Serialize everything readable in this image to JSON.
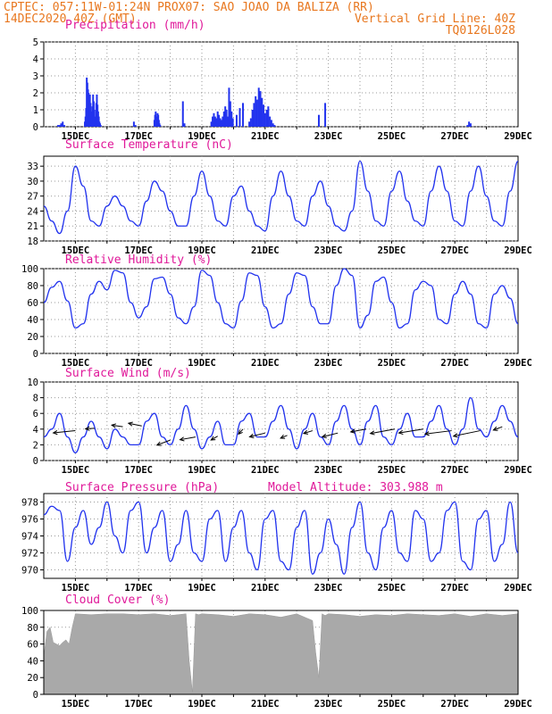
{
  "header": {
    "line1": "CPTEC:  057:11W-01:24N  PROX07: SAO JOAO DA BALIZA (RR)",
    "line2_left": "14DEC2020 40Z (GMT)",
    "line2_right": "Vertical Grid Line: 40Z",
    "line3_right": "TQ0126L028"
  },
  "colors": {
    "header": "#e8771f",
    "title": "#e0199a",
    "series": "#2233ee",
    "cloud": "#a9a9a9"
  },
  "x_labels": [
    "15DEC",
    "17DEC",
    "19DEC",
    "21DEC",
    "23DEC",
    "25DEC",
    "27DEC",
    "29DEC"
  ],
  "chart_data": [
    {
      "id": "precip",
      "type": "bar",
      "title": "Precipitation (mm/h)",
      "extra": "",
      "ylim": [
        0,
        5
      ],
      "yticks": [
        0,
        1,
        2,
        3,
        4,
        5
      ],
      "x": [
        0.45,
        0.5,
        0.55,
        0.6,
        0.65,
        1.3,
        1.32,
        1.34,
        1.36,
        1.38,
        1.4,
        1.42,
        1.44,
        1.46,
        1.48,
        1.5,
        1.52,
        1.54,
        1.56,
        1.58,
        1.6,
        1.62,
        1.64,
        1.66,
        1.68,
        1.7,
        1.72,
        1.74,
        1.76,
        1.78,
        1.8,
        2.85,
        2.9,
        3.5,
        3.52,
        3.54,
        3.56,
        3.58,
        3.6,
        3.62,
        3.64,
        3.66,
        3.68,
        4.4,
        4.45,
        5.3,
        5.34,
        5.38,
        5.42,
        5.46,
        5.5,
        5.54,
        5.58,
        5.62,
        5.66,
        5.7,
        5.74,
        5.78,
        5.82,
        5.86,
        5.9,
        5.94,
        5.98,
        6.1,
        6.2,
        6.3,
        6.5,
        6.55,
        6.6,
        6.65,
        6.7,
        6.75,
        6.8,
        6.85,
        6.9,
        6.95,
        7.0,
        7.05,
        7.1,
        7.15,
        7.2,
        7.25,
        7.3,
        8.7,
        8.9,
        13.4,
        13.45,
        13.5
      ],
      "values": [
        0.1,
        0.1,
        0.2,
        0.3,
        0.1,
        0.3,
        0.6,
        1.1,
        2.9,
        2.6,
        2.2,
        2.0,
        1.8,
        1.9,
        1.4,
        0.9,
        0.6,
        1.2,
        1.9,
        1.5,
        1.0,
        0.5,
        0.6,
        1.4,
        1.9,
        1.3,
        0.9,
        0.6,
        0.3,
        0.2,
        0.1,
        0.3,
        0.1,
        0.4,
        0.7,
        0.9,
        0.6,
        0.5,
        0.8,
        0.7,
        0.4,
        0.2,
        0.1,
        1.5,
        0.2,
        0.3,
        0.6,
        0.8,
        0.6,
        0.5,
        0.9,
        0.7,
        0.5,
        0.4,
        0.6,
        0.9,
        1.2,
        1.0,
        0.6,
        2.3,
        1.5,
        0.9,
        0.5,
        0.7,
        1.1,
        1.4,
        0.3,
        0.5,
        1.0,
        1.4,
        1.8,
        1.6,
        2.3,
        2.1,
        1.7,
        1.3,
        0.8,
        1.0,
        1.2,
        0.6,
        0.4,
        0.2,
        0.1,
        0.7,
        1.4,
        0.1,
        0.3,
        0.2
      ]
    },
    {
      "id": "temp",
      "type": "line",
      "title": "Surface Temperature (nC)",
      "extra": "",
      "ylim": [
        18,
        35
      ],
      "yticks": [
        18,
        21,
        24,
        27,
        30,
        33
      ],
      "x": [
        0,
        0.25,
        0.5,
        0.75,
        1,
        1.25,
        1.5,
        1.75,
        2,
        2.25,
        2.5,
        2.75,
        3,
        3.25,
        3.5,
        3.75,
        4,
        4.25,
        4.5,
        4.75,
        5,
        5.25,
        5.5,
        5.75,
        6,
        6.25,
        6.5,
        6.75,
        7,
        7.25,
        7.5,
        7.75,
        8,
        8.25,
        8.5,
        8.75,
        9,
        9.25,
        9.5,
        9.75,
        10,
        10.25,
        10.5,
        10.75,
        11,
        11.25,
        11.5,
        11.75,
        12,
        12.25,
        12.5,
        12.75,
        13,
        13.25,
        13.5,
        13.75,
        14,
        14.25,
        14.5,
        14.75,
        15
      ],
      "values": [
        25,
        22,
        19.5,
        24,
        33,
        29,
        22,
        21,
        25,
        27,
        25,
        22,
        21,
        26,
        30,
        28,
        24,
        21,
        21,
        27,
        32,
        27,
        22,
        21,
        27,
        29,
        24,
        21,
        20,
        27,
        32,
        27,
        22,
        21,
        27,
        30,
        25,
        21,
        20,
        24,
        34,
        28,
        22,
        21,
        28,
        32,
        26,
        22,
        21,
        28,
        33,
        28,
        22,
        21,
        28,
        33,
        27,
        22,
        21,
        28,
        34
      ]
    },
    {
      "id": "rh",
      "type": "line",
      "title": "Relative Humidity (%)",
      "extra": "",
      "ylim": [
        0,
        100
      ],
      "yticks": [
        0,
        20,
        40,
        60,
        80,
        100
      ],
      "x": [
        0,
        0.25,
        0.5,
        0.75,
        1,
        1.25,
        1.5,
        1.75,
        2,
        2.25,
        2.5,
        2.75,
        3,
        3.25,
        3.5,
        3.75,
        4,
        4.25,
        4.5,
        4.75,
        5,
        5.25,
        5.5,
        5.75,
        6,
        6.25,
        6.5,
        6.75,
        7,
        7.25,
        7.5,
        7.75,
        8,
        8.25,
        8.5,
        8.75,
        9,
        9.25,
        9.5,
        9.75,
        10,
        10.25,
        10.5,
        10.75,
        11,
        11.25,
        11.5,
        11.75,
        12,
        12.25,
        12.5,
        12.75,
        13,
        13.25,
        13.5,
        13.75,
        14,
        14.25,
        14.5,
        14.75,
        15
      ],
      "values": [
        60,
        78,
        85,
        62,
        30,
        35,
        70,
        85,
        75,
        98,
        95,
        60,
        42,
        55,
        88,
        90,
        70,
        42,
        35,
        55,
        98,
        92,
        60,
        35,
        30,
        62,
        95,
        92,
        55,
        30,
        35,
        70,
        95,
        92,
        55,
        35,
        35,
        80,
        100,
        92,
        30,
        45,
        85,
        90,
        60,
        30,
        35,
        75,
        85,
        80,
        40,
        35,
        70,
        85,
        70,
        35,
        30,
        70,
        80,
        65,
        35
      ]
    },
    {
      "id": "wind",
      "type": "line",
      "title": "Surface Wind (m/s)",
      "extra": "",
      "ylim": [
        0,
        10
      ],
      "yticks": [
        0,
        2,
        4,
        6,
        8,
        10
      ],
      "x": [
        0,
        0.25,
        0.5,
        0.75,
        1,
        1.25,
        1.5,
        1.75,
        2,
        2.25,
        2.5,
        2.75,
        3,
        3.25,
        3.5,
        3.75,
        4,
        4.25,
        4.5,
        4.75,
        5,
        5.25,
        5.5,
        5.75,
        6,
        6.25,
        6.5,
        6.75,
        7,
        7.25,
        7.5,
        7.75,
        8,
        8.25,
        8.5,
        8.75,
        9,
        9.25,
        9.5,
        9.75,
        10,
        10.25,
        10.5,
        10.75,
        11,
        11.25,
        11.5,
        11.75,
        12,
        12.25,
        12.5,
        12.75,
        13,
        13.25,
        13.5,
        13.75,
        14,
        14.25,
        14.5,
        14.75,
        15
      ],
      "values": [
        3,
        4,
        6,
        3,
        1,
        3,
        5,
        3,
        1.5,
        4,
        3,
        2,
        2,
        5,
        6,
        3,
        2,
        4,
        7,
        4,
        1.5,
        3,
        5,
        2,
        2,
        5,
        6,
        3,
        3,
        5,
        7,
        4,
        1.5,
        4,
        6,
        3,
        2,
        5,
        7,
        4,
        2,
        5,
        7,
        3,
        2,
        4,
        6,
        3,
        3,
        5,
        7,
        4,
        2,
        4,
        8,
        4,
        3,
        5,
        7,
        5,
        3
      ],
      "arrows": [
        {
          "x": 1.0,
          "y": 3.8,
          "dx": -1.0,
          "dy": -0.4
        },
        {
          "x": 1.6,
          "y": 4.1,
          "dx": -0.4,
          "dy": -0.1
        },
        {
          "x": 2.5,
          "y": 4.3,
          "dx": -0.5,
          "dy": 0.3
        },
        {
          "x": 3.1,
          "y": 4.4,
          "dx": -0.6,
          "dy": 0.5
        },
        {
          "x": 4.0,
          "y": 2.6,
          "dx": -0.6,
          "dy": -0.9
        },
        {
          "x": 4.8,
          "y": 3.0,
          "dx": -0.7,
          "dy": -0.5
        },
        {
          "x": 5.5,
          "y": 3.1,
          "dx": -0.3,
          "dy": -0.7
        },
        {
          "x": 6.3,
          "y": 4.0,
          "dx": -0.2,
          "dy": -0.9
        },
        {
          "x": 7.0,
          "y": 3.5,
          "dx": -0.7,
          "dy": -0.7
        },
        {
          "x": 7.7,
          "y": 3.2,
          "dx": -0.3,
          "dy": -0.5
        },
        {
          "x": 8.5,
          "y": 3.8,
          "dx": -0.4,
          "dy": -0.5
        },
        {
          "x": 9.3,
          "y": 3.5,
          "dx": -0.7,
          "dy": -0.7
        },
        {
          "x": 10.2,
          "y": 4.0,
          "dx": -0.7,
          "dy": -0.5
        },
        {
          "x": 11.1,
          "y": 4.0,
          "dx": -1.1,
          "dy": -0.8
        },
        {
          "x": 12.0,
          "y": 4.0,
          "dx": -1.1,
          "dy": -0.7
        },
        {
          "x": 12.9,
          "y": 3.8,
          "dx": -1.2,
          "dy": -0.6
        },
        {
          "x": 13.8,
          "y": 3.8,
          "dx": -1.2,
          "dy": -1.0
        },
        {
          "x": 14.5,
          "y": 4.3,
          "dx": -0.4,
          "dy": -0.6
        }
      ]
    },
    {
      "id": "pres",
      "type": "line",
      "title": "Surface Pressure (hPa)",
      "extra": "Model Altitude: 303.988 m",
      "ylim": [
        969,
        979
      ],
      "yticks": [
        970,
        972,
        974,
        976,
        978
      ],
      "x": [
        0,
        0.25,
        0.5,
        0.75,
        1,
        1.25,
        1.5,
        1.75,
        2,
        2.25,
        2.5,
        2.75,
        3,
        3.25,
        3.5,
        3.75,
        4,
        4.25,
        4.5,
        4.75,
        5,
        5.25,
        5.5,
        5.75,
        6,
        6.25,
        6.5,
        6.75,
        7,
        7.25,
        7.5,
        7.75,
        8,
        8.25,
        8.5,
        8.75,
        9,
        9.25,
        9.5,
        9.75,
        10,
        10.25,
        10.5,
        10.75,
        11,
        11.25,
        11.5,
        11.75,
        12,
        12.25,
        12.5,
        12.75,
        13,
        13.25,
        13.5,
        13.75,
        14,
        14.25,
        14.5,
        14.75,
        15
      ],
      "values": [
        976.5,
        977.5,
        977,
        971,
        975,
        977,
        973,
        975,
        978,
        974,
        972,
        977,
        978,
        972,
        975,
        977,
        971,
        973,
        977,
        972,
        971,
        976,
        977,
        971,
        975,
        977,
        972,
        970,
        976,
        977,
        971,
        970,
        975,
        977,
        969.5,
        972,
        976,
        973,
        969.5,
        975,
        978,
        972,
        970,
        975,
        977,
        972,
        971,
        977,
        976,
        971,
        972,
        977,
        978,
        971,
        970,
        976,
        977,
        971,
        973,
        978,
        972
      ]
    },
    {
      "id": "cloud",
      "type": "area",
      "title": "Cloud Cover (%)",
      "extra": "",
      "ylim": [
        0,
        100
      ],
      "yticks": [
        0,
        20,
        40,
        60,
        80,
        100
      ],
      "x": [
        0,
        0.1,
        0.2,
        0.3,
        0.4,
        0.5,
        0.6,
        0.7,
        0.8,
        0.9,
        1.0,
        1.5,
        2.0,
        2.5,
        3.0,
        3.5,
        4.0,
        4.5,
        4.6,
        4.7,
        4.8,
        4.9,
        5.0,
        5.5,
        6.0,
        6.5,
        7.0,
        7.5,
        8.0,
        8.5,
        8.6,
        8.7,
        8.8,
        8.9,
        9.0,
        9.5,
        10.0,
        10.5,
        11.0,
        11.5,
        12.0,
        12.5,
        13.0,
        13.5,
        14.0,
        14.5,
        15.0
      ],
      "values": [
        45,
        75,
        80,
        62,
        60,
        58,
        62,
        65,
        60,
        80,
        96,
        95,
        96,
        96,
        95,
        96,
        94,
        96,
        40,
        3,
        96,
        95,
        96,
        95,
        93,
        96,
        95,
        92,
        96,
        88,
        50,
        20,
        96,
        94,
        96,
        95,
        93,
        95,
        94,
        96,
        95,
        94,
        96,
        93,
        96,
        94,
        96
      ]
    }
  ]
}
